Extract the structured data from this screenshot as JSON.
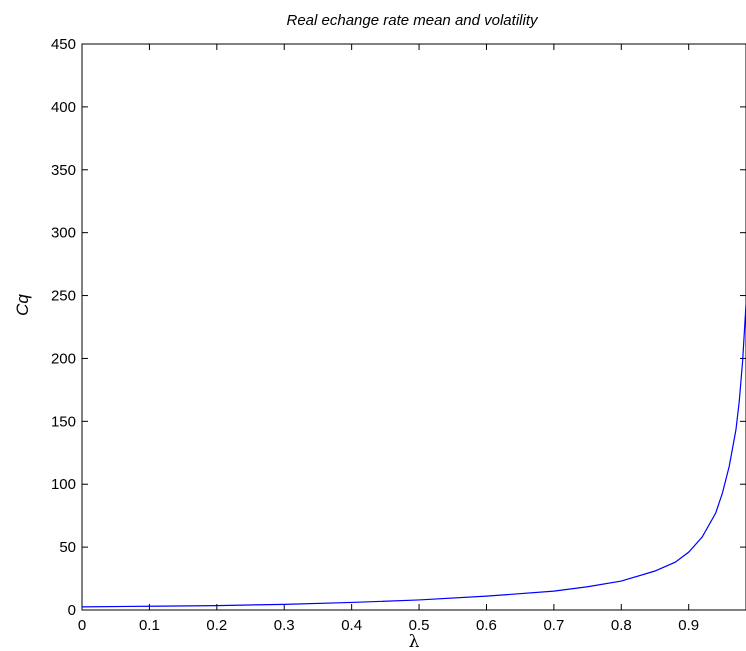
{
  "chart_data": {
    "type": "line",
    "title": "Real echange rate mean and volatility",
    "xlabel": "λ",
    "ylabel": "Cq",
    "xlim": [
      0,
      0.985
    ],
    "ylim": [
      0,
      450
    ],
    "xticks": [
      "0",
      "0.1",
      "0.2",
      "0.3",
      "0.4",
      "0.5",
      "0.6",
      "0.7",
      "0.8",
      "0.9"
    ],
    "yticks": [
      "0",
      "50",
      "100",
      "150",
      "200",
      "250",
      "300",
      "350",
      "400",
      "450"
    ],
    "grid": false,
    "line_color": "#0000ff",
    "series": [
      {
        "x": [
          0,
          0.1,
          0.2,
          0.3,
          0.4,
          0.5,
          0.6,
          0.7,
          0.75,
          0.8,
          0.85,
          0.88,
          0.9,
          0.92,
          0.94,
          0.95,
          0.96,
          0.97,
          0.975,
          0.98,
          0.985
        ],
        "values": [
          2.5,
          3,
          3.5,
          4.5,
          6,
          8,
          11,
          15,
          18.5,
          23,
          31,
          38,
          46,
          58,
          77,
          93,
          114,
          143,
          166,
          198,
          243
        ]
      }
    ]
  }
}
